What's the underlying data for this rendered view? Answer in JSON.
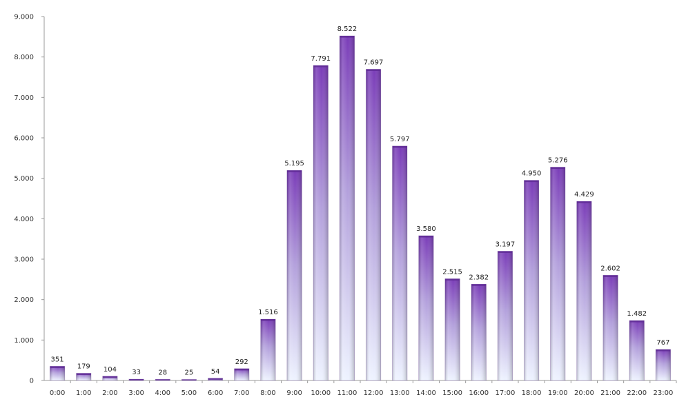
{
  "chart_data": {
    "type": "bar",
    "categories": [
      "0:00",
      "1:00",
      "2:00",
      "3:00",
      "4:00",
      "5:00",
      "6:00",
      "7:00",
      "8:00",
      "9:00",
      "10:00",
      "11:00",
      "12:00",
      "13:00",
      "14:00",
      "15:00",
      "16:00",
      "17:00",
      "18:00",
      "19:00",
      "20:00",
      "21:00",
      "22:00",
      "23:00"
    ],
    "values": [
      351,
      179,
      104,
      33,
      28,
      25,
      54,
      292,
      1516,
      5195,
      7791,
      8522,
      7697,
      5797,
      3580,
      2515,
      2382,
      3197,
      4950,
      5276,
      4429,
      2602,
      1482,
      767
    ],
    "value_labels": [
      "351",
      "179",
      "104",
      "33",
      "28",
      "25",
      "54",
      "292",
      "1.516",
      "5.195",
      "7.791",
      "8.522",
      "7.697",
      "5.797",
      "3.580",
      "2.515",
      "2.382",
      "3.197",
      "4.950",
      "5.276",
      "4.429",
      "2.602",
      "1.482",
      "767"
    ],
    "ylim": [
      0,
      9000
    ],
    "yticks": [
      0,
      1000,
      2000,
      3000,
      4000,
      5000,
      6000,
      7000,
      8000,
      9000
    ],
    "ytick_labels": [
      "0",
      "1.000",
      "2.000",
      "3.000",
      "4.000",
      "5.000",
      "6.000",
      "7.000",
      "8.000",
      "9.000"
    ],
    "grid": false,
    "legend": "none",
    "colors": {
      "bar_top": "#7a3cb8",
      "bar_mid": "#b9a6de",
      "bar_bottom": "#eef3ff",
      "bar_edge": "#5a2a8c",
      "axis": "#9a9a9a"
    }
  }
}
